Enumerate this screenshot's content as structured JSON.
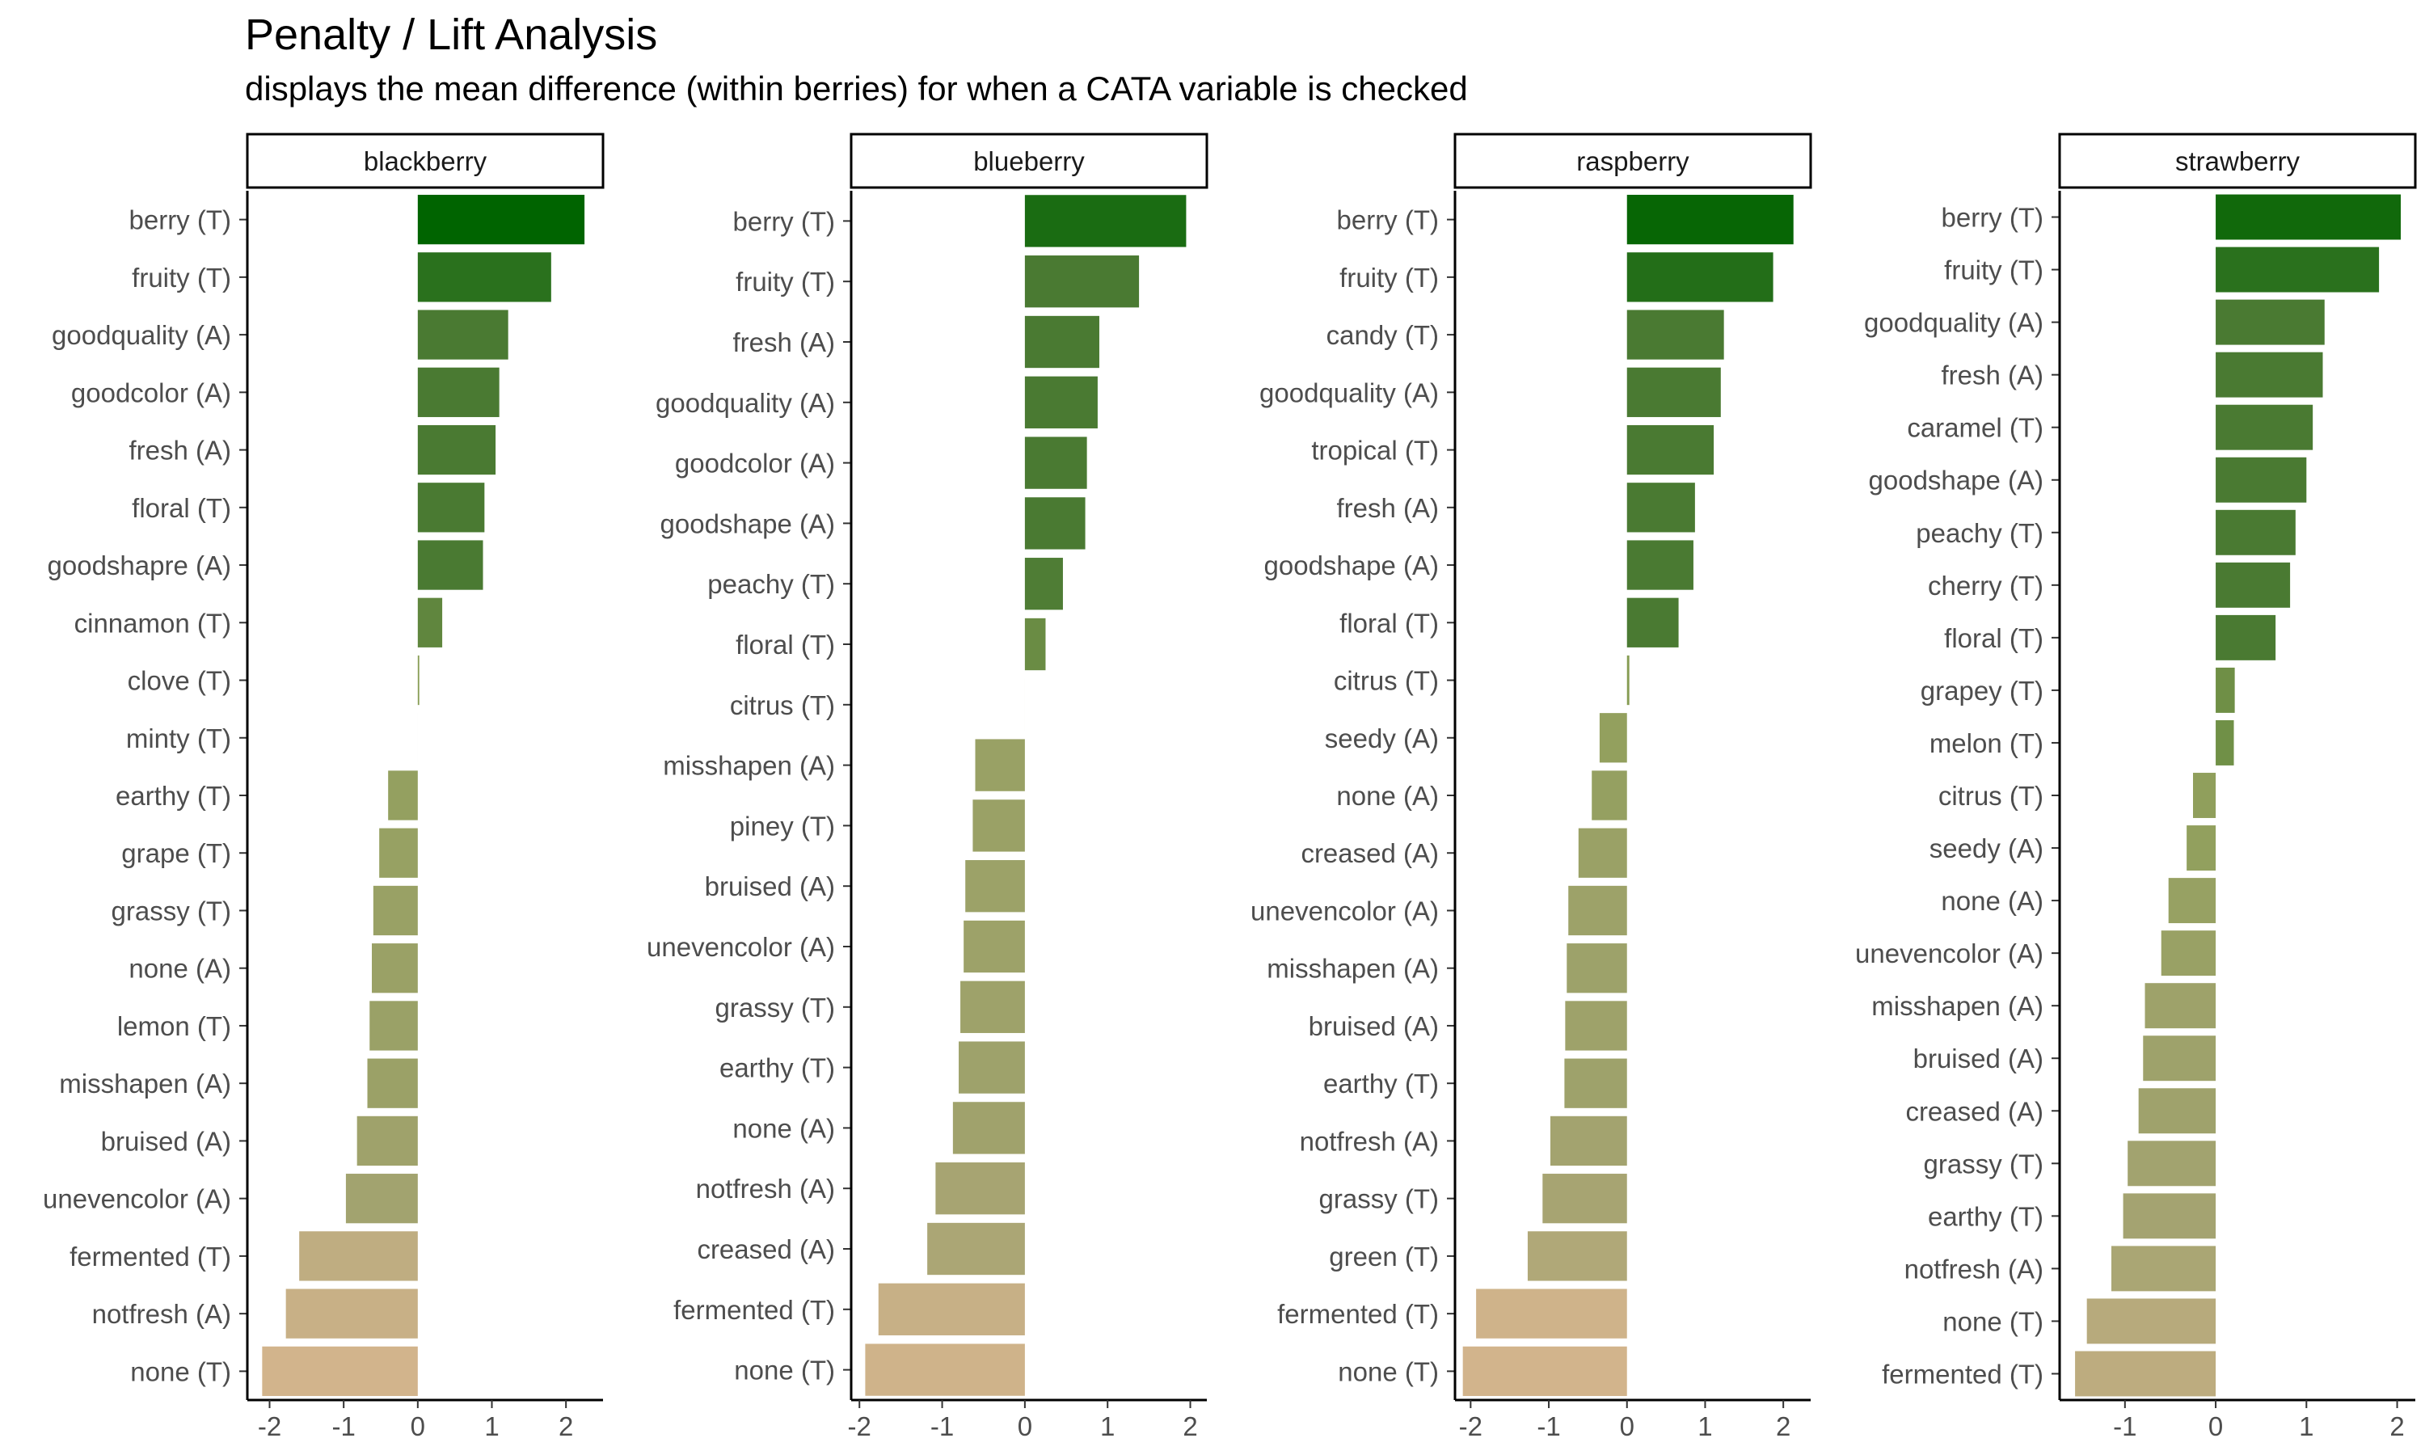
{
  "chart_data": {
    "type": "bar",
    "orientation": "horizontal",
    "title": "Penalty / Lift Analysis",
    "subtitle": "displays the mean difference (within berries) for when a CATA variable is checked",
    "xlabel": "",
    "ylabel": "",
    "grid": false,
    "legend": "none",
    "facets": [
      {
        "name": "blackberry",
        "xlim": [
          -2.3,
          2.5
        ],
        "ticks": [
          -2,
          -1,
          0,
          1,
          2
        ],
        "categories": [
          "berry (T)",
          "fruity (T)",
          "goodquality (A)",
          "goodcolor (A)",
          "fresh (A)",
          "floral (T)",
          "goodshapre (A)",
          "cinnamon (T)",
          "clove (T)",
          "minty (T)",
          "earthy (T)",
          "grape (T)",
          "grassy (T)",
          "none (A)",
          "lemon (T)",
          "misshapen (A)",
          "bruised (A)",
          "unevencolor (A)",
          "fermented (T)",
          "notfresh (A)",
          "none (T)"
        ],
        "values": [
          2.25,
          1.8,
          1.22,
          1.1,
          1.05,
          0.9,
          0.88,
          0.33,
          0.02,
          0.0,
          -0.4,
          -0.52,
          -0.6,
          -0.62,
          -0.65,
          -0.68,
          -0.82,
          -0.97,
          -1.6,
          -1.78,
          -2.1
        ]
      },
      {
        "name": "blueberry",
        "xlim": [
          -2.1,
          2.2
        ],
        "ticks": [
          -2,
          -1,
          0,
          1,
          2
        ],
        "categories": [
          "berry (T)",
          "fruity (T)",
          "fresh (A)",
          "goodquality (A)",
          "goodcolor (A)",
          "goodshape (A)",
          "peachy (T)",
          "floral (T)",
          "citrus (T)",
          "misshapen (A)",
          "piney (T)",
          "bruised (A)",
          "unevencolor (A)",
          "grassy (T)",
          "earthy (T)",
          "none (A)",
          "notfresh (A)",
          "creased (A)",
          "fermented (T)",
          "none (T)"
        ],
        "values": [
          1.95,
          1.38,
          0.9,
          0.88,
          0.75,
          0.73,
          0.46,
          0.25,
          0.0,
          -0.6,
          -0.63,
          -0.72,
          -0.74,
          -0.78,
          -0.8,
          -0.87,
          -1.08,
          -1.18,
          -1.77,
          -1.93
        ]
      },
      {
        "name": "raspberry",
        "xlim": [
          -2.2,
          2.35
        ],
        "ticks": [
          -2,
          -1,
          0,
          1,
          2
        ],
        "categories": [
          "berry (T)",
          "fruity (T)",
          "candy (T)",
          "goodquality (A)",
          "tropical (T)",
          "fresh (A)",
          "goodshape (A)",
          "floral (T)",
          "citrus (T)",
          "seedy (A)",
          "none (A)",
          "creased (A)",
          "unevencolor (A)",
          "misshapen (A)",
          "bruised (A)",
          "earthy (T)",
          "notfresh (A)",
          "grassy (T)",
          "green (T)",
          "fermented (T)",
          "none (T)"
        ],
        "values": [
          2.13,
          1.87,
          1.24,
          1.2,
          1.11,
          0.87,
          0.85,
          0.66,
          0.03,
          -0.35,
          -0.45,
          -0.62,
          -0.75,
          -0.77,
          -0.79,
          -0.8,
          -0.98,
          -1.08,
          -1.27,
          -1.93,
          -2.1
        ]
      },
      {
        "name": "strawberry",
        "xlim": [
          -1.72,
          2.2
        ],
        "ticks": [
          -1,
          0,
          1,
          2
        ],
        "categories": [
          "berry (T)",
          "fruity (T)",
          "goodquality (A)",
          "fresh (A)",
          "caramel (T)",
          "goodshape (A)",
          "peachy (T)",
          "cherry (T)",
          "floral (T)",
          "grapey (T)",
          "melon (T)",
          "citrus (T)",
          "seedy (A)",
          "none (A)",
          "unevencolor (A)",
          "misshapen (A)",
          "bruised (A)",
          "creased (A)",
          "grassy (T)",
          "earthy (T)",
          "notfresh (A)",
          "none (T)",
          "fermented (T)"
        ],
        "values": [
          2.04,
          1.8,
          1.2,
          1.18,
          1.07,
          1.0,
          0.88,
          0.82,
          0.66,
          0.21,
          0.2,
          -0.25,
          -0.32,
          -0.52,
          -0.6,
          -0.78,
          -0.8,
          -0.85,
          -0.97,
          -1.02,
          -1.15,
          -1.42,
          -1.55
        ]
      }
    ],
    "colors": {
      "max_positive": "#006400",
      "mid_positive": "#4a7a32",
      "near_zero": "#8a9e55",
      "mid_negative": "#a3a370",
      "max_negative": "#d2b48c",
      "strip_fill": "#ffffff",
      "axis": "#000000",
      "tick_text": "#4d4d4d"
    }
  }
}
